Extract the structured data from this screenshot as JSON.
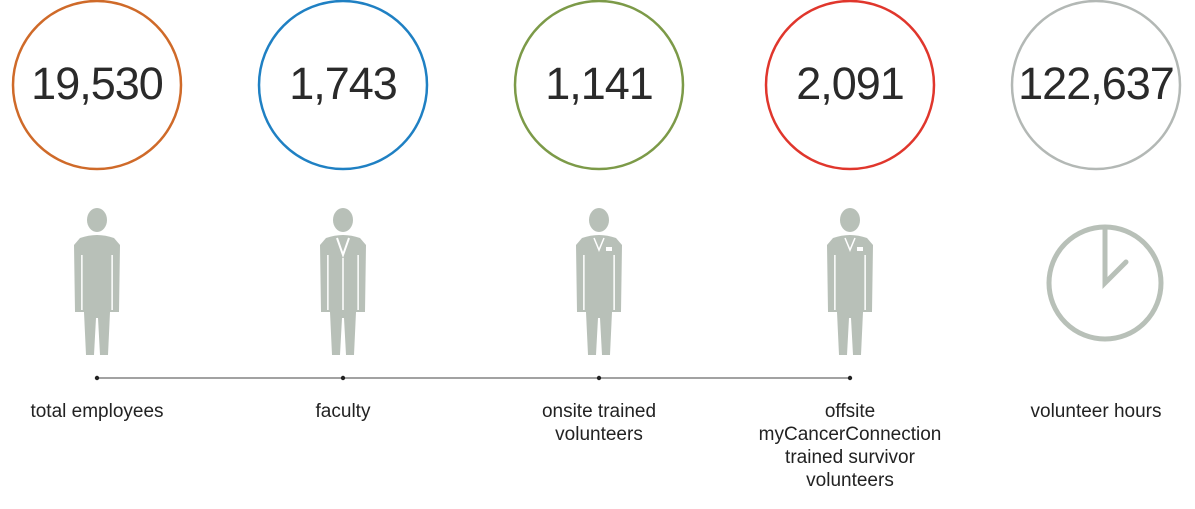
{
  "items": [
    {
      "value": "19,530",
      "label": [
        "total employees"
      ],
      "color": "#cf6a29"
    },
    {
      "value": "1,743",
      "label": [
        "faculty"
      ],
      "color": "#1f80c3"
    },
    {
      "value": "1,141",
      "label": [
        "onsite trained",
        "volunteers"
      ],
      "color": "#7c9a48"
    },
    {
      "value": "2,091",
      "label": [
        "offsite",
        "myCancerConnection",
        "trained survivor",
        "volunteers"
      ],
      "color": "#e0362c"
    },
    {
      "value": "122,637",
      "label": [
        "volunteer hours"
      ],
      "color": "#b3b8b5"
    }
  ]
}
